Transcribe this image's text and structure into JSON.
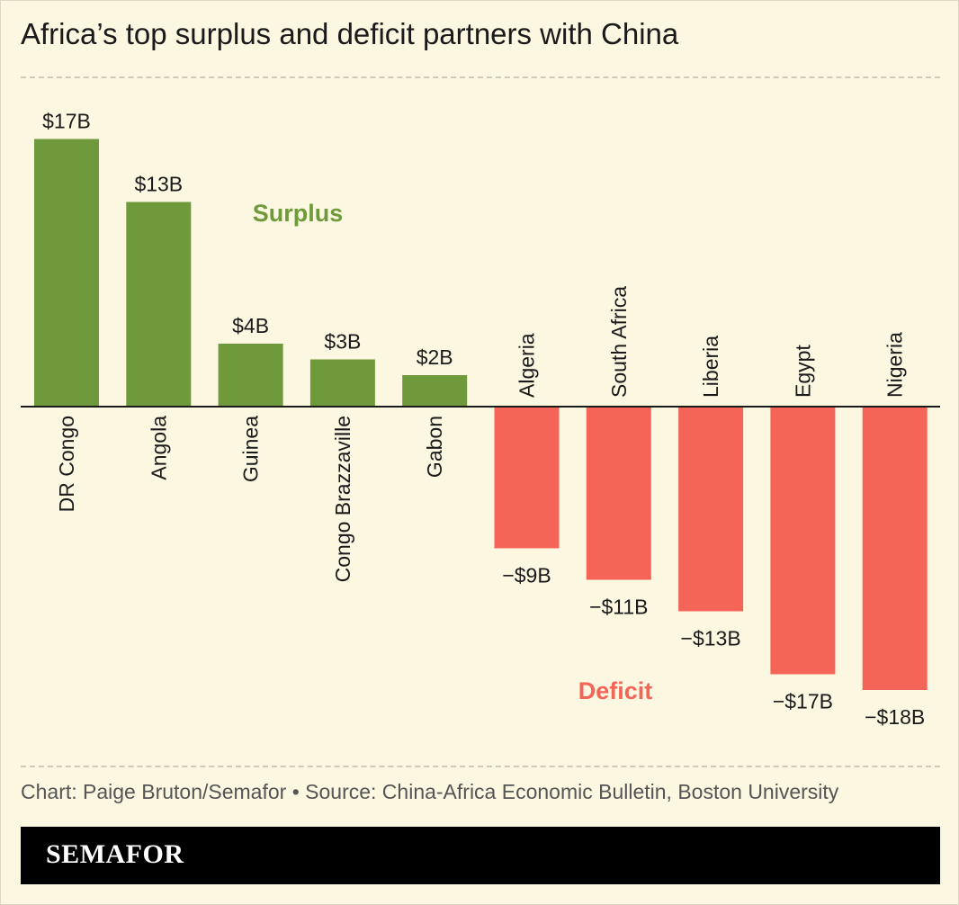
{
  "header": {
    "title": "Africa’s top surplus and deficit partners with China"
  },
  "chart_data": {
    "type": "bar",
    "title": "Africa’s top surplus and deficit partners with China",
    "xlabel": "",
    "ylabel": "",
    "ylim": [
      -18,
      17
    ],
    "grid": false,
    "categories": [
      "DR Congo",
      "Angola",
      "Guinea",
      "Congo Brazzaville",
      "Gabon",
      "Algeria",
      "South Africa",
      "Liberia",
      "Egypt",
      "Nigeria"
    ],
    "values": [
      17,
      13,
      4,
      3,
      2,
      -9,
      -11,
      -13,
      -17,
      -18
    ],
    "data_labels": [
      "$17B",
      "$13B",
      "$4B",
      "$3B",
      "$2B",
      "−$9B",
      "−$11B",
      "−$13B",
      "−$17B",
      "−$18B"
    ],
    "annotations": {
      "surplus": "Surplus",
      "deficit": "Deficit"
    },
    "colors": {
      "surplus": "#6f9a3b",
      "deficit": "#f46557",
      "surplus_label": "#6f9a3b",
      "deficit_label": "#f46557"
    }
  },
  "footer": {
    "source": "Chart: Paige Bruton/Semafor • Source: China-Africa Economic Bulletin, Boston University",
    "brand": "SEMAFOR"
  }
}
